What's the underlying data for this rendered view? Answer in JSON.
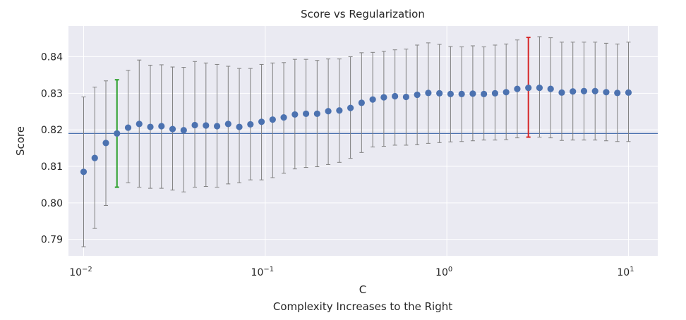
{
  "chart_data": {
    "type": "scatter",
    "title": "Score vs Regularization",
    "xlabel": "C",
    "xlabel_sub": "Complexity Increases to the Right",
    "ylabel": "Score",
    "x_scale": "log",
    "xlim": [
      0.00825,
      14.5
    ],
    "ylim": [
      0.7855,
      0.8484
    ],
    "x_ticks": [
      {
        "value": 0.01,
        "base": "10",
        "exp": "−2"
      },
      {
        "value": 0.1,
        "base": "10",
        "exp": "−1"
      },
      {
        "value": 1,
        "base": "10",
        "exp": "0"
      },
      {
        "value": 10,
        "base": "10",
        "exp": "1"
      }
    ],
    "y_ticks": [
      {
        "value": 0.79,
        "label": "0.79"
      },
      {
        "value": 0.8,
        "label": "0.80"
      },
      {
        "value": 0.81,
        "label": "0.81"
      },
      {
        "value": 0.82,
        "label": "0.82"
      },
      {
        "value": 0.83,
        "label": "0.83"
      },
      {
        "value": 0.84,
        "label": "0.84"
      }
    ],
    "grid": true,
    "background": "#eaeaf2",
    "colors": {
      "points": "#4c72b0",
      "error_bars": "#808080",
      "reference_line": "#4c72b0",
      "best_simple_bar": "#2ca02c",
      "best_score_bar": "#d62728"
    },
    "reference_line_y": 0.819,
    "highlight": {
      "green_index": 3,
      "red_index": 40
    },
    "x_log10_start": -2,
    "x_log10_end": 1,
    "scores": [
      0.8085,
      0.8123,
      0.8164,
      0.819,
      0.8206,
      0.8216,
      0.8208,
      0.821,
      0.8202,
      0.8199,
      0.8213,
      0.8212,
      0.821,
      0.8216,
      0.8208,
      0.8215,
      0.8222,
      0.8228,
      0.8234,
      0.8242,
      0.8244,
      0.8244,
      0.8251,
      0.8253,
      0.826,
      0.8274,
      0.8283,
      0.8289,
      0.8292,
      0.829,
      0.8296,
      0.8301,
      0.83,
      0.8298,
      0.8298,
      0.8299,
      0.8298,
      0.83,
      0.8303,
      0.8312,
      0.8315,
      0.8315,
      0.8312,
      0.8302,
      0.8305,
      0.8306,
      0.8306,
      0.8303,
      0.8301,
      0.8302
    ],
    "lower": [
      0.788,
      0.793,
      0.7993,
      0.8043,
      0.8055,
      0.8043,
      0.804,
      0.804,
      0.8035,
      0.803,
      0.8043,
      0.8045,
      0.8043,
      0.8052,
      0.8055,
      0.8063,
      0.8063,
      0.8069,
      0.8081,
      0.8093,
      0.8097,
      0.8099,
      0.8105,
      0.8111,
      0.8122,
      0.8138,
      0.8153,
      0.8155,
      0.8158,
      0.8158,
      0.8159,
      0.8163,
      0.8165,
      0.8167,
      0.8168,
      0.817,
      0.8172,
      0.8172,
      0.8173,
      0.8178,
      0.818,
      0.818,
      0.8178,
      0.8171,
      0.8172,
      0.8172,
      0.8172,
      0.817,
      0.8168,
      0.8168
    ],
    "upper": [
      0.829,
      0.8317,
      0.8334,
      0.8337,
      0.8363,
      0.8391,
      0.8377,
      0.8378,
      0.8372,
      0.8371,
      0.8387,
      0.8383,
      0.8379,
      0.8374,
      0.8368,
      0.8368,
      0.8379,
      0.8383,
      0.8384,
      0.8393,
      0.8393,
      0.839,
      0.8394,
      0.8394,
      0.84,
      0.8411,
      0.8412,
      0.8415,
      0.8419,
      0.8421,
      0.8432,
      0.8438,
      0.8434,
      0.8428,
      0.8427,
      0.843,
      0.8427,
      0.8432,
      0.8435,
      0.8446,
      0.8453,
      0.8455,
      0.8452,
      0.844,
      0.844,
      0.844,
      0.844,
      0.8437,
      0.8435,
      0.844
    ]
  }
}
